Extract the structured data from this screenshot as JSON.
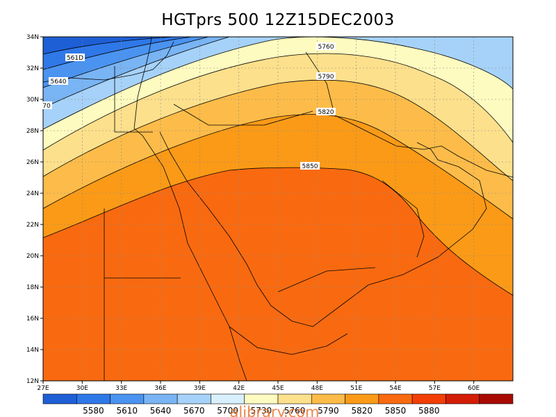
{
  "title": "HGTprs 500 12Z15DEC2003",
  "watermark": "alibrary.com",
  "map": {
    "lat_range": [
      12,
      34
    ],
    "lon_range": [
      27,
      63
    ],
    "lat_ticks": [
      "12N",
      "14N",
      "16N",
      "18N",
      "20N",
      "22N",
      "24N",
      "26N",
      "28N",
      "30N",
      "32N",
      "34N"
    ],
    "lon_ticks": [
      "27E",
      "30E",
      "33E",
      "36E",
      "39E",
      "42E",
      "45E",
      "48E",
      "51E",
      "54E",
      "57E",
      "60E"
    ],
    "contour_labels": [
      "561D",
      "5640",
      "70",
      "5760",
      "5790",
      "5820",
      "5850"
    ],
    "grid": "dotted"
  },
  "colorbar": {
    "colors": [
      "#1e5fd6",
      "#2f78e8",
      "#4a93f0",
      "#79b4f4",
      "#a6d2f9",
      "#d8f0fd",
      "#fefbc0",
      "#fde08c",
      "#fdbc49",
      "#fb9a17",
      "#f96a10",
      "#f33f07",
      "#d41d05",
      "#a70a03"
    ],
    "labels": [
      "5580",
      "5610",
      "5640",
      "5670",
      "5700",
      "5730",
      "5760",
      "5790",
      "5820",
      "5850",
      "5880"
    ]
  }
}
